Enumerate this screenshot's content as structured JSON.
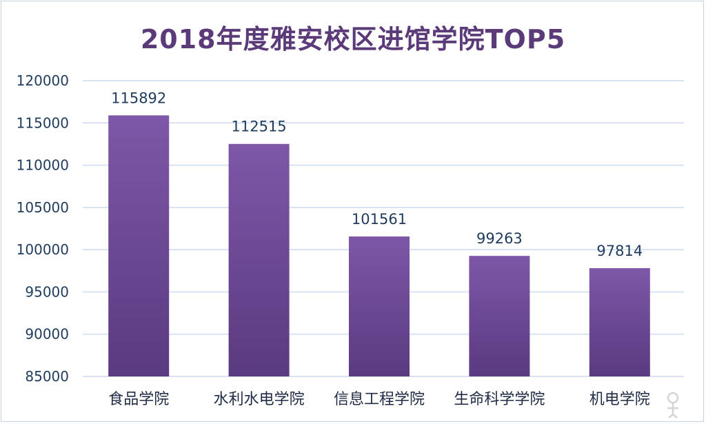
{
  "chart_data": {
    "type": "bar",
    "title": "2018年度雅安校区进馆学院TOP5",
    "categories": [
      "食品学院",
      "水利水电学院",
      "信息工程学院",
      "生命科学学院",
      "机电学院"
    ],
    "values": [
      115892,
      112515,
      101561,
      99263,
      97814
    ],
    "data_labels": [
      "115892",
      "112515",
      "101561",
      "99263",
      "97814"
    ],
    "xlabel": "",
    "ylabel": "",
    "ylim": [
      85000,
      120000
    ],
    "yticks": [
      "120000",
      "115000",
      "110000",
      "105000",
      "100000",
      "95000",
      "90000",
      "85000"
    ],
    "ytick_values": [
      120000,
      115000,
      110000,
      105000,
      100000,
      95000,
      90000,
      85000
    ],
    "grid": true,
    "legend": "none",
    "bar_color_top": "#7e57a8",
    "bar_color_bottom": "#5a3a80",
    "title_color": "#5b3a7a",
    "grid_color": "#d7e3f0"
  }
}
